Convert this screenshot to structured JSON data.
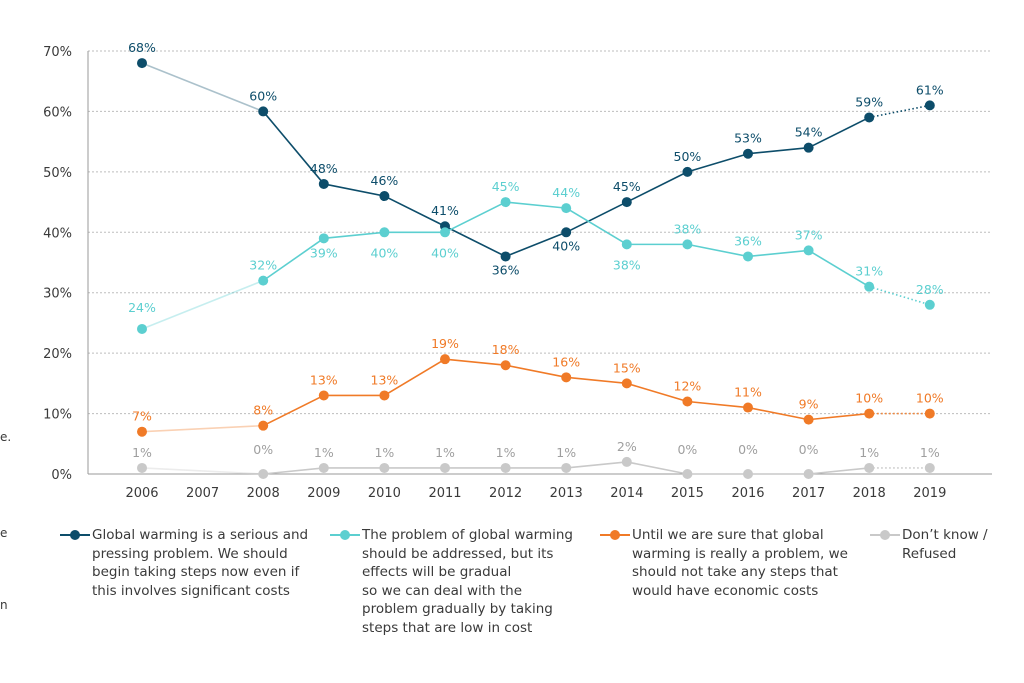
{
  "chart_data": {
    "type": "line",
    "categories": [
      "2006",
      "2007",
      "2008",
      "2009",
      "2010",
      "2011",
      "2012",
      "2013",
      "2014",
      "2015",
      "2016",
      "2017",
      "2018",
      "2019"
    ],
    "ylim": [
      0,
      70
    ],
    "yticks": [
      "0%",
      "10%",
      "20%",
      "30%",
      "40%",
      "50%",
      "60%",
      "70%"
    ],
    "grid": true,
    "legend_position": "bottom",
    "series": [
      {
        "name": "Global warming is a serious and pressing problem. We should begin taking steps now even if this involves significant costs",
        "color": "#0d4d6a",
        "values": [
          68,
          null,
          60,
          48,
          46,
          41,
          36,
          40,
          45,
          50,
          53,
          54,
          59,
          61
        ],
        "labels": [
          "68%",
          "",
          "60%",
          "48%",
          "46%",
          "41%",
          "36%",
          "40%",
          "45%",
          "50%",
          "53%",
          "54%",
          "59%",
          "61%"
        ]
      },
      {
        "name": "The problem of global warming should be addressed, but its effects will be gradual so we can deal with the problem gradually by taking steps that are low in cost",
        "color": "#5ccfd0",
        "values": [
          24,
          null,
          32,
          39,
          40,
          40,
          45,
          44,
          38,
          38,
          36,
          37,
          31,
          28
        ],
        "labels": [
          "24%",
          "",
          "32%",
          "39%",
          "40%",
          "40%",
          "45%",
          "44%",
          "38%",
          "38%",
          "36%",
          "37%",
          "31%",
          "28%"
        ]
      },
      {
        "name": "Until we are sure that global warming is really a problem, we should not take any steps that would have economic costs",
        "color": "#f07a27",
        "values": [
          7,
          null,
          8,
          13,
          13,
          19,
          18,
          16,
          15,
          12,
          11,
          9,
          10,
          10
        ],
        "labels": [
          "7%",
          "",
          "8%",
          "13%",
          "13%",
          "19%",
          "18%",
          "16%",
          "15%",
          "12%",
          "11%",
          "9%",
          "10%",
          "10%"
        ]
      },
      {
        "name": "Don’t know / Refused",
        "color": "#c9c9c9",
        "values": [
          1,
          null,
          0,
          1,
          1,
          1,
          1,
          1,
          2,
          0,
          0,
          0,
          1,
          1
        ],
        "labels": [
          "1%",
          "",
          "0%",
          "1%",
          "1%",
          "1%",
          "1%",
          "1%",
          "2%",
          "0%",
          "0%",
          "0%",
          "1%",
          "1%"
        ]
      }
    ]
  },
  "legend": [
    {
      "text": "Global warming is a serious and\npressing problem. We should\nbegin taking steps now even if\nthis involves significant costs",
      "color": "#0d4d6a"
    },
    {
      "text": "The problem of global warming\nshould be addressed, but its\neffects will be gradual\nso we can deal with the\nproblem gradually by taking\nsteps that are low in cost",
      "color": "#5ccfd0"
    },
    {
      "text": "Until we are sure that global\nwarming is really a problem, we\nshould not take any steps that\nwould have economic costs",
      "color": "#f07a27"
    },
    {
      "text": "Don’t know /\nRefused",
      "color": "#c9c9c9"
    }
  ],
  "edge_fragments": [
    "e.",
    "e",
    "n"
  ]
}
